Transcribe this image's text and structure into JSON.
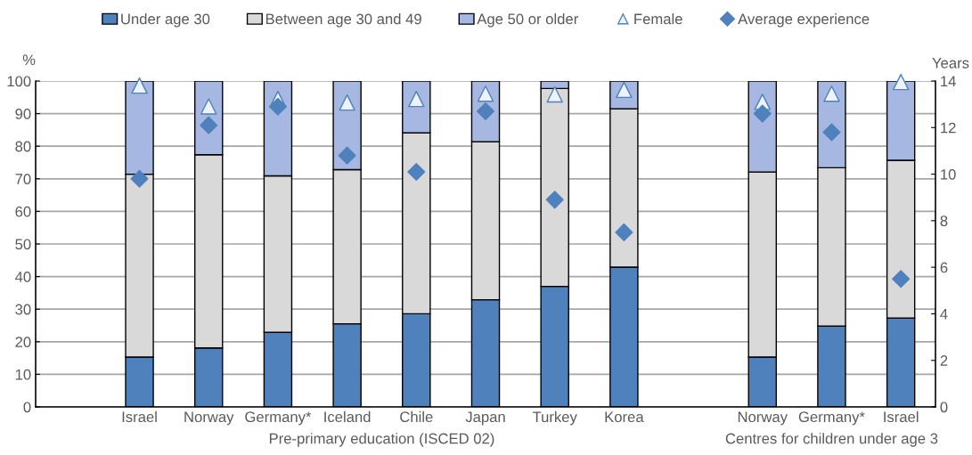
{
  "chart_data": {
    "type": "bar",
    "stacked": true,
    "categories": [
      "Israel",
      "Norway",
      "Germany*",
      "Iceland",
      "Chile",
      "Japan",
      "Turkey",
      "Korea",
      null,
      "Norway",
      "Germany*",
      "Israel"
    ],
    "series": [
      {
        "name": "Under age 30",
        "color": "#4f81bd",
        "values": [
          15.3,
          18.1,
          22.9,
          25.5,
          28.6,
          32.9,
          37.0,
          42.9,
          null,
          15.3,
          24.8,
          27.3
        ]
      },
      {
        "name": "Between age 30 and 49",
        "color": "#d9d9d9",
        "values": [
          56.1,
          59.3,
          48.0,
          47.3,
          55.5,
          48.5,
          60.7,
          48.6,
          null,
          56.8,
          48.6,
          48.4
        ]
      },
      {
        "name": "Age 50 or older",
        "color": "#a6b8e2",
        "values": [
          28.6,
          22.6,
          29.1,
          27.2,
          15.9,
          18.6,
          2.3,
          8.5,
          null,
          27.9,
          26.6,
          24.3
        ]
      },
      {
        "name": "Female",
        "type": "scatter",
        "marker": "triangle",
        "color": "#4f81bd",
        "values": [
          98.6,
          92.2,
          94.5,
          93.4,
          94.5,
          96.1,
          95.9,
          97.3,
          null,
          93.6,
          96.1,
          99.7
        ]
      },
      {
        "name": "Average experience",
        "type": "scatter",
        "marker": "diamond",
        "axis": "y2",
        "color": "#4f81bd",
        "values": [
          9.8,
          12.1,
          12.9,
          10.8,
          10.1,
          12.7,
          8.9,
          7.5,
          null,
          12.6,
          11.8,
          5.5
        ]
      }
    ],
    "ylabel": "%",
    "y2label": "Years",
    "ylim": [
      0,
      100
    ],
    "yticks": [
      0,
      10,
      20,
      30,
      40,
      50,
      60,
      70,
      80,
      90,
      100
    ],
    "y2lim": [
      0,
      14
    ],
    "y2ticks": [
      0,
      2,
      4,
      6,
      8,
      10,
      12,
      14
    ],
    "annotations": [
      "Pre-primary education (ISCED 02)",
      "Centres for children under age 3"
    ],
    "grid": "y",
    "legend": "top"
  }
}
